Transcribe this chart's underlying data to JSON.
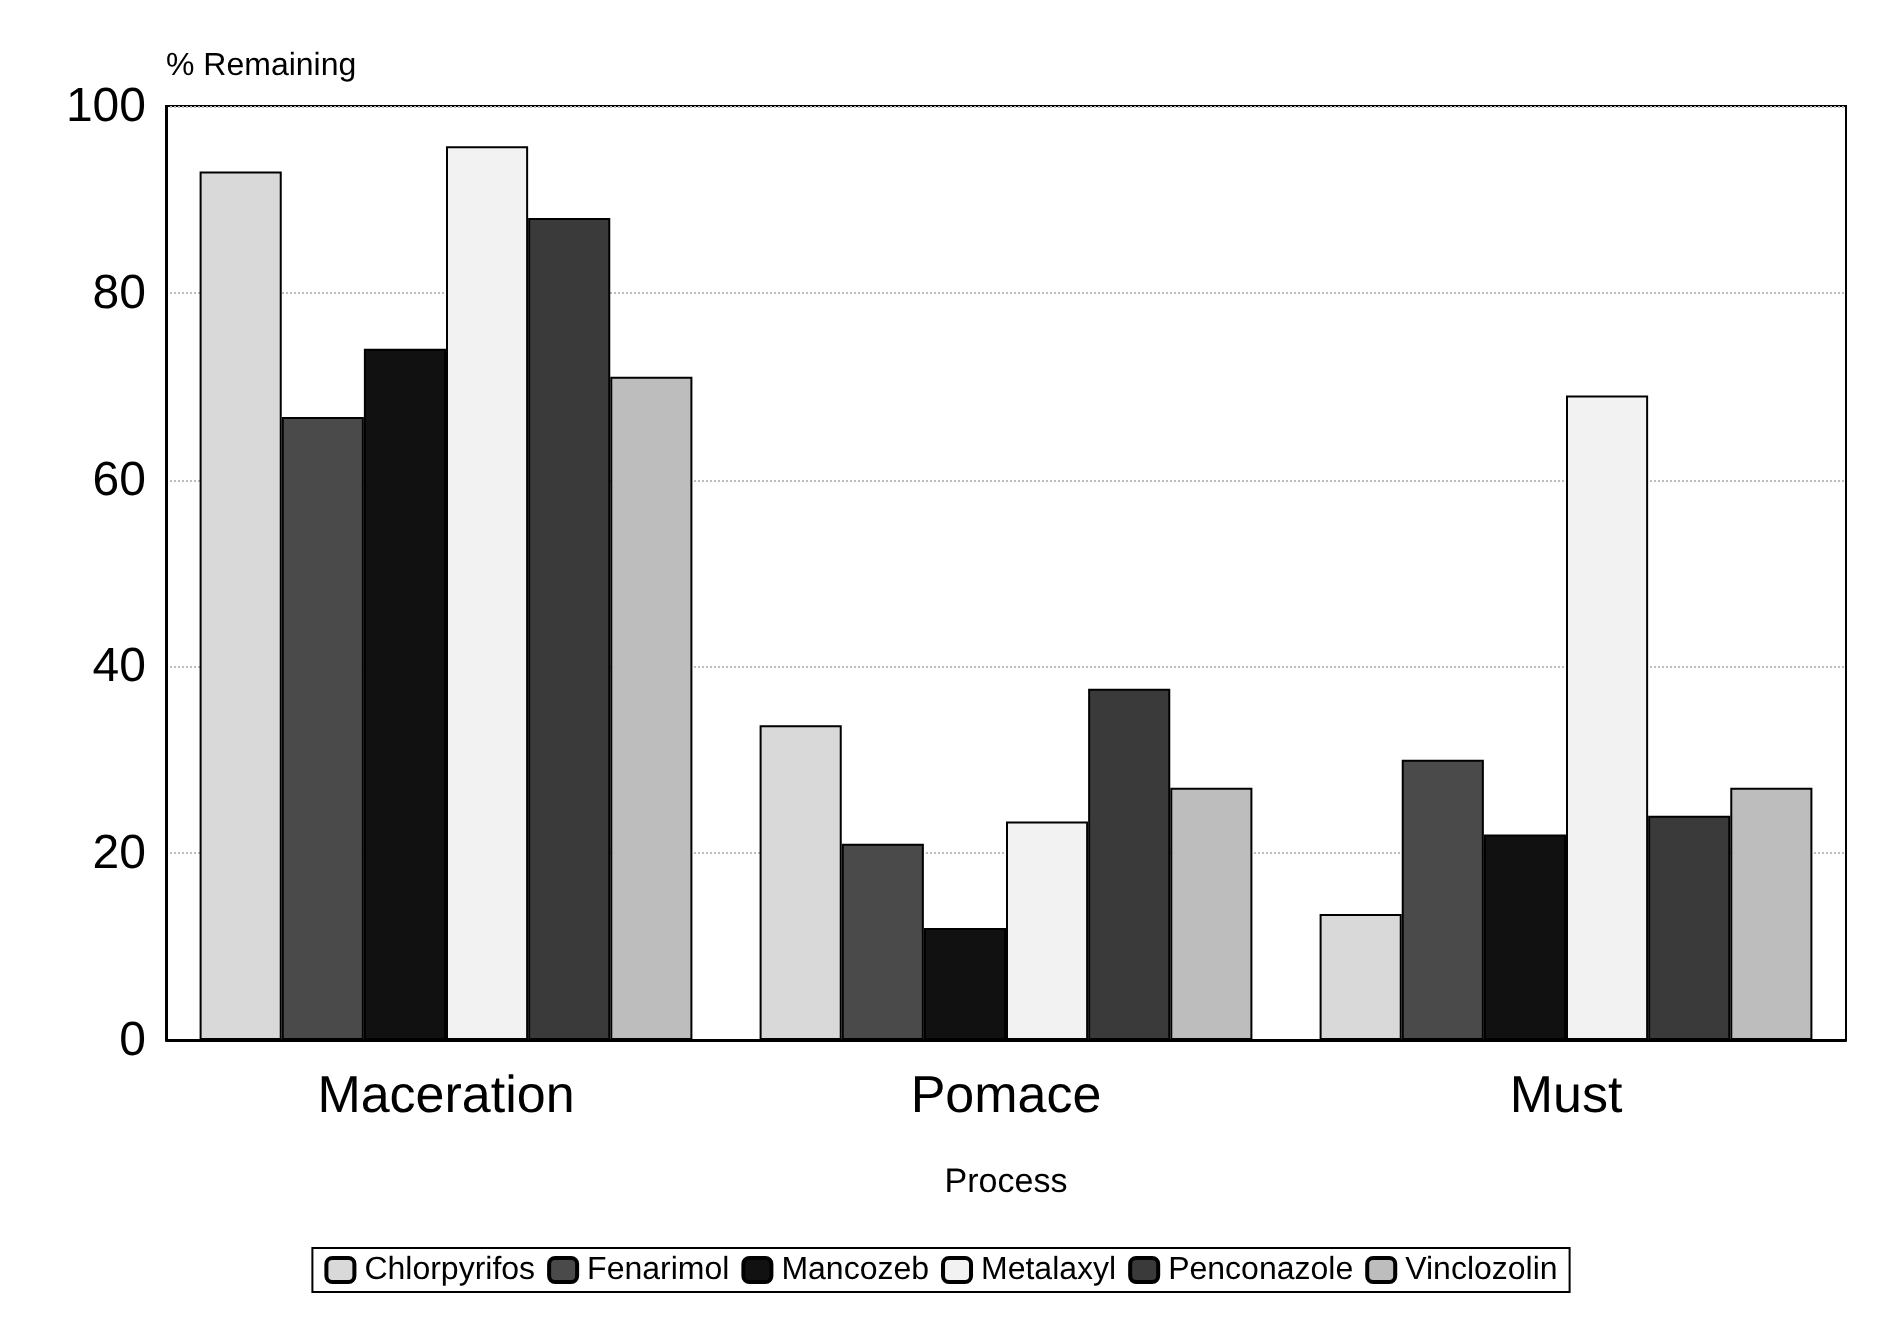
{
  "chart_data": {
    "type": "bar",
    "xlabel": "Process",
    "ylabel": "% Remaining",
    "categories": [
      "Maceration",
      "Pomace",
      "Must"
    ],
    "series": [
      {
        "name": "Chlorpyrifos",
        "color": "#d9d9d9",
        "values": [
          93,
          33.7,
          13.5
        ]
      },
      {
        "name": "Fenarimol",
        "color": "#4a4a4a",
        "values": [
          66.7,
          21,
          30
        ]
      },
      {
        "name": "Mancozeb",
        "color": "#111111",
        "values": [
          74,
          12,
          22
        ]
      },
      {
        "name": "Metalaxyl",
        "color": "#f2f2f2",
        "values": [
          95.7,
          23.4,
          69
        ]
      },
      {
        "name": "Penconazole",
        "color": "#3a3a3a",
        "values": [
          88,
          37.6,
          24
        ]
      },
      {
        "name": "Vinclozolin",
        "color": "#bdbdbd",
        "values": [
          71,
          27,
          27
        ]
      }
    ],
    "ylim": [
      0,
      100
    ],
    "yticks": [
      0,
      20,
      40,
      60,
      80,
      100
    ],
    "grid": "y",
    "legend": "bottom"
  }
}
